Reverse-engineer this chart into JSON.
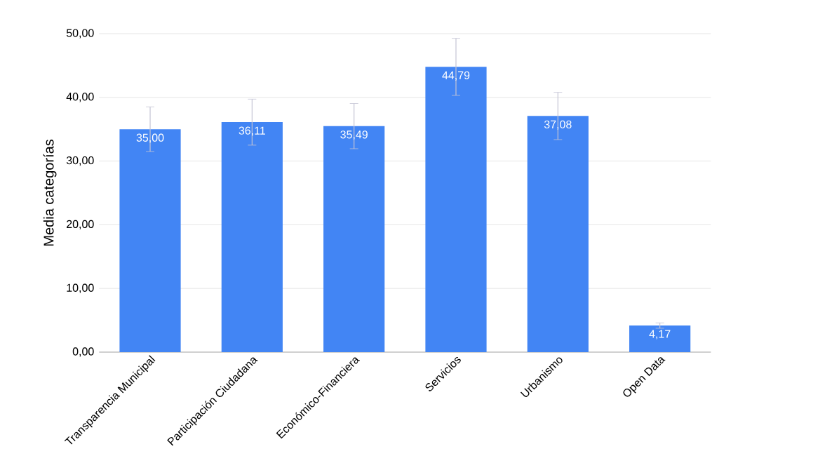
{
  "chart_data": {
    "type": "bar",
    "ylabel": "Media categorías",
    "categories": [
      "Transparencia Municipal",
      "Participación Ciudadana",
      "Económico-Financiera",
      "Servicios",
      "Urbanismo",
      "Open Data"
    ],
    "values": [
      35.0,
      36.11,
      35.49,
      44.79,
      37.08,
      4.17
    ],
    "errors": [
      3.5,
      3.61,
      3.55,
      4.48,
      3.71,
      0.42
    ],
    "value_labels": [
      "35,00",
      "36,11",
      "35,49",
      "44,79",
      "37,08",
      "4,17"
    ],
    "color": "#4285f4",
    "ylim": [
      0,
      50
    ],
    "yticks": [
      {
        "value": 0,
        "label": "0,00"
      },
      {
        "value": 10,
        "label": "10,00"
      },
      {
        "value": 20,
        "label": "20,00"
      },
      {
        "value": 30,
        "label": "30,00"
      },
      {
        "value": 40,
        "label": "40,00"
      },
      {
        "value": 50,
        "label": "50,00"
      }
    ],
    "grid": "y"
  }
}
